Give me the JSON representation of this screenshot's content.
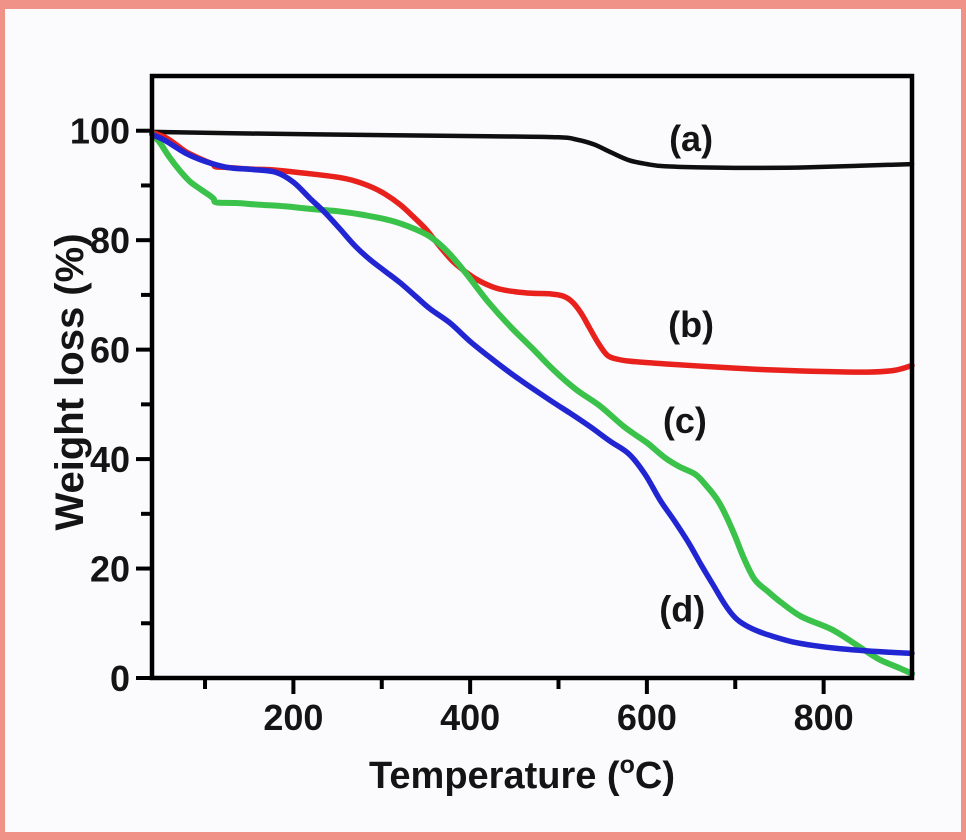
{
  "figure": {
    "border_color": "#F09288",
    "background_color": "#FBFBFD",
    "axis_color": "#000000",
    "text_color": "#141414"
  },
  "chart_data": {
    "type": "line",
    "title": "",
    "xlabel": "Temperature (oC)",
    "xlabel_parts": {
      "prefix": "Temperature (",
      "sup": "o",
      "suffix": "C)"
    },
    "ylabel": "Weight loss (%)",
    "xlim": [
      40,
      900
    ],
    "ylim": [
      0,
      110
    ],
    "grid": false,
    "legend_position": "inline-curve-labels",
    "x_major_ticks": [
      200,
      400,
      600,
      800
    ],
    "x_minor_ticks": [
      100,
      300,
      500,
      700
    ],
    "y_major_ticks": [
      0,
      20,
      40,
      60,
      80,
      100
    ],
    "y_minor_ticks": [
      10,
      30,
      50,
      70,
      90
    ],
    "series": [
      {
        "id": "a",
        "label": "(a)",
        "color": "#0F0F0F",
        "stroke_width": 4.5,
        "label_x": 650,
        "label_y": 98.5,
        "points": [
          [
            40,
            99.8
          ],
          [
            150,
            99.5
          ],
          [
            300,
            99.2
          ],
          [
            420,
            99.0
          ],
          [
            500,
            98.8
          ],
          [
            520,
            98.4
          ],
          [
            540,
            97.5
          ],
          [
            560,
            96.0
          ],
          [
            580,
            94.6
          ],
          [
            600,
            93.9
          ],
          [
            620,
            93.5
          ],
          [
            660,
            93.3
          ],
          [
            720,
            93.2
          ],
          [
            780,
            93.3
          ],
          [
            840,
            93.6
          ],
          [
            900,
            93.9
          ]
        ]
      },
      {
        "id": "b",
        "label": "(b)",
        "color": "#E8211D",
        "stroke_width": 5.5,
        "label_x": 650,
        "label_y": 64.5,
        "points": [
          [
            40,
            99.7
          ],
          [
            55,
            98.8
          ],
          [
            67,
            97.5
          ],
          [
            78,
            96.2
          ],
          [
            89,
            95.3
          ],
          [
            100,
            94.5
          ],
          [
            109,
            93.9
          ],
          [
            112,
            93.4
          ],
          [
            125,
            93.3
          ],
          [
            150,
            93.0
          ],
          [
            180,
            92.8
          ],
          [
            215,
            92.2
          ],
          [
            250,
            91.5
          ],
          [
            270,
            90.8
          ],
          [
            290,
            89.6
          ],
          [
            305,
            88.3
          ],
          [
            320,
            86.6
          ],
          [
            335,
            84.4
          ],
          [
            350,
            82.0
          ],
          [
            365,
            79.0
          ],
          [
            380,
            76.2
          ],
          [
            395,
            74.2
          ],
          [
            410,
            72.6
          ],
          [
            430,
            71.2
          ],
          [
            450,
            70.6
          ],
          [
            470,
            70.3
          ],
          [
            490,
            70.2
          ],
          [
            505,
            69.8
          ],
          [
            515,
            68.8
          ],
          [
            525,
            66.8
          ],
          [
            535,
            64.0
          ],
          [
            545,
            61.2
          ],
          [
            555,
            59.0
          ],
          [
            565,
            58.3
          ],
          [
            580,
            57.9
          ],
          [
            620,
            57.4
          ],
          [
            680,
            56.8
          ],
          [
            740,
            56.3
          ],
          [
            800,
            56.0
          ],
          [
            850,
            55.9
          ],
          [
            880,
            56.2
          ],
          [
            900,
            57.1
          ]
        ]
      },
      {
        "id": "c",
        "label": "(c)",
        "color": "#3BC24A",
        "stroke_width": 6,
        "label_x": 643,
        "label_y": 47,
        "points": [
          [
            40,
            99.5
          ],
          [
            49,
            97.8
          ],
          [
            60,
            95.1
          ],
          [
            72,
            92.6
          ],
          [
            83,
            90.7
          ],
          [
            95,
            89.3
          ],
          [
            106,
            88.1
          ],
          [
            110,
            87.5
          ],
          [
            113,
            86.9
          ],
          [
            135,
            86.8
          ],
          [
            160,
            86.5
          ],
          [
            190,
            86.2
          ],
          [
            220,
            85.7
          ],
          [
            250,
            85.3
          ],
          [
            280,
            84.6
          ],
          [
            310,
            83.6
          ],
          [
            335,
            82.2
          ],
          [
            355,
            80.6
          ],
          [
            375,
            77.8
          ],
          [
            395,
            74.0
          ],
          [
            420,
            68.8
          ],
          [
            445,
            64.3
          ],
          [
            470,
            60.3
          ],
          [
            495,
            56.2
          ],
          [
            520,
            52.7
          ],
          [
            547,
            49.7
          ],
          [
            575,
            45.8
          ],
          [
            600,
            43.0
          ],
          [
            620,
            40.3
          ],
          [
            637,
            38.6
          ],
          [
            655,
            37.2
          ],
          [
            668,
            35.0
          ],
          [
            680,
            32.5
          ],
          [
            690,
            29.5
          ],
          [
            700,
            25.8
          ],
          [
            710,
            21.8
          ],
          [
            722,
            18.0
          ],
          [
            737,
            15.8
          ],
          [
            752,
            13.8
          ],
          [
            775,
            11.2
          ],
          [
            810,
            8.8
          ],
          [
            845,
            5.2
          ],
          [
            863,
            3.4
          ],
          [
            886,
            1.8
          ],
          [
            900,
            0.8
          ]
        ]
      },
      {
        "id": "d",
        "label": "(d)",
        "color": "#2126D2",
        "stroke_width": 5.5,
        "label_x": 640,
        "label_y": 12.5,
        "points": [
          [
            40,
            99.3
          ],
          [
            55,
            98.2
          ],
          [
            78,
            95.9
          ],
          [
            100,
            94.4
          ],
          [
            125,
            93.3
          ],
          [
            155,
            92.9
          ],
          [
            180,
            92.4
          ],
          [
            200,
            90.6
          ],
          [
            219,
            87.6
          ],
          [
            236,
            85.0
          ],
          [
            253,
            82.0
          ],
          [
            270,
            78.9
          ],
          [
            287,
            76.4
          ],
          [
            304,
            74.3
          ],
          [
            321,
            72.2
          ],
          [
            338,
            69.8
          ],
          [
            355,
            67.4
          ],
          [
            377,
            64.9
          ],
          [
            400,
            61.5
          ],
          [
            423,
            58.5
          ],
          [
            445,
            55.8
          ],
          [
            468,
            53.2
          ],
          [
            490,
            50.8
          ],
          [
            513,
            48.4
          ],
          [
            536,
            45.9
          ],
          [
            558,
            43.3
          ],
          [
            580,
            40.9
          ],
          [
            598,
            37.2
          ],
          [
            615,
            32.5
          ],
          [
            632,
            28.5
          ],
          [
            648,
            24.5
          ],
          [
            662,
            20.5
          ],
          [
            675,
            17.0
          ],
          [
            688,
            13.5
          ],
          [
            700,
            11.0
          ],
          [
            712,
            9.6
          ],
          [
            728,
            8.4
          ],
          [
            745,
            7.5
          ],
          [
            765,
            6.6
          ],
          [
            790,
            5.9
          ],
          [
            815,
            5.4
          ],
          [
            845,
            5.0
          ],
          [
            875,
            4.7
          ],
          [
            900,
            4.5
          ]
        ]
      }
    ]
  }
}
